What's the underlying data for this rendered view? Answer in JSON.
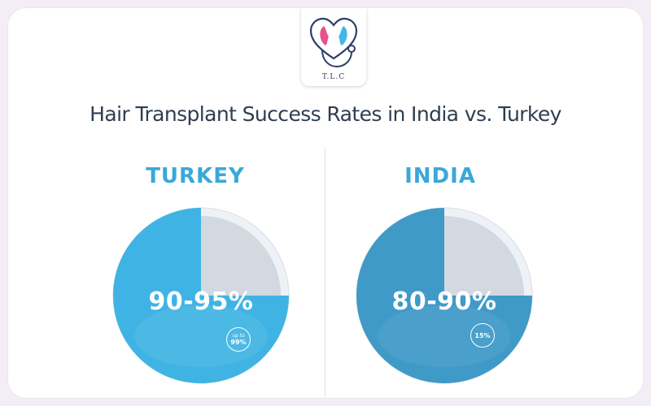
{
  "brand": {
    "logo_text": "T.L.C"
  },
  "chart_data": {
    "type": "pie",
    "title": "Hair Transplant Success Rates in India vs. Turkey",
    "charts": [
      {
        "label": "TURKEY",
        "value_label": "90-95%",
        "badge_line1": "up to",
        "badge_line2": "99%",
        "filled_fraction": 0.75,
        "color": "#3fb4e4",
        "remainder_color": "#d2d9e0",
        "label_color": "#3aa8d8"
      },
      {
        "label": "INDIA",
        "value_label": "80-90%",
        "badge_line1": "15%",
        "badge_line2": "",
        "filled_fraction": 0.75,
        "color": "#3f9ac8",
        "remainder_color": "#d2d9e0",
        "label_color": "#3aa8d8"
      }
    ]
  }
}
